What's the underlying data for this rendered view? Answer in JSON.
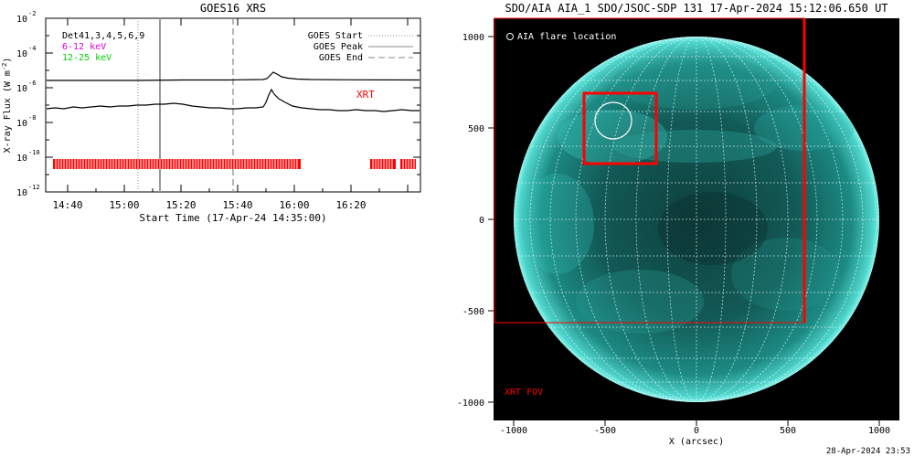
{
  "left_panel": {
    "title": "GOES16 XRS",
    "xlabel": "Start Time (17-Apr-24 14:35:00)",
    "ylabel": "X-ray Flux (W m",
    "ylabel_sup": "-2",
    "ylabel_close": ")",
    "x_ticks": [
      "14:40",
      "15:00",
      "15:20",
      "15:40",
      "16:00",
      "16:20"
    ],
    "y_ticks": [
      {
        "base": "10",
        "exp": "-2"
      },
      {
        "base": "10",
        "exp": "-4"
      },
      {
        "base": "10",
        "exp": "-6"
      },
      {
        "base": "10",
        "exp": "-8"
      },
      {
        "base": "10",
        "exp": "-10"
      },
      {
        "base": "10",
        "exp": "-12"
      }
    ],
    "det_label": "Det41,3,4,5,6,9",
    "band_low": "6-12 keV",
    "band_high": "12-25 keV",
    "band_low_color": "#e000e0",
    "band_high_color": "#00d000",
    "legend": [
      "GOES Start",
      "GOES Peak",
      "GOES End"
    ],
    "xrt_label": "XRT",
    "xrt_color": "#ff0000"
  },
  "right_panel": {
    "title": "SDO/AIA AIA_1 SDO/JSOC-SDP 131 17-Apr-2024 15:12:06.650 UT",
    "flare_label": "AIA flare location",
    "xrt_fov_label": "XRT FOV",
    "xlabel": "X (arcsec)",
    "x_ticks": [
      "-1000",
      "-500",
      "0",
      "500",
      "1000"
    ],
    "y_ticks": [
      "1000",
      "500",
      "0",
      "-500",
      "-1000"
    ],
    "sun_color": "#1fa7a0",
    "fov_color": "#ff0000"
  },
  "footer": {
    "timestamp": "28-Apr-2024 23:53"
  }
}
